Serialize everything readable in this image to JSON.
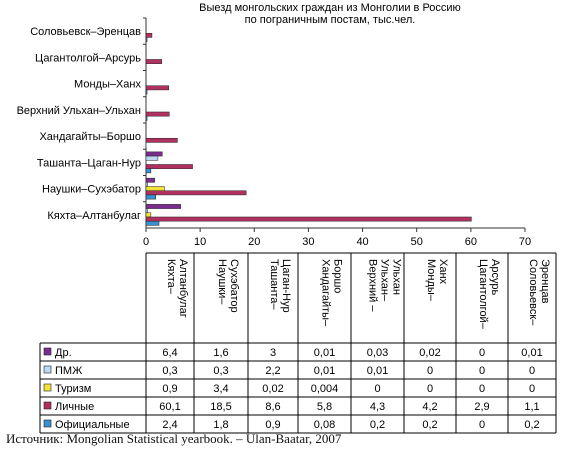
{
  "chart_data": {
    "type": "bar",
    "orientation": "horizontal",
    "title": "Выезд монгольских граждан из Монголии в Россию\nпо пограничным постам, тыс.чел.",
    "categories": [
      "Кяхта–Алтанбулаг",
      "Наушки–Сухэбатор",
      "Ташанта–Цаган-Нур",
      "Хандагайты–Боршо",
      "Верхний Ульхан–Ульхан",
      "Монды–Ханх",
      "Цагантолгой–Арсурь",
      "Соловьевск–Эренцав"
    ],
    "table_headers": [
      "Кяхта–\nАлтанбулаг",
      "Наушки–\nСухэбатор",
      "Ташанта–\nЦаган-Нур",
      "Хандагайты–\nБоршо",
      "Верхний –\nУльхан–\nУльхан",
      "Монды–\nХанх",
      "Цагантолгой–\nАрсурь",
      "Соловьевск–\nЭренцав"
    ],
    "series": [
      {
        "name": "Др.",
        "color": "#7b2d8e",
        "values": [
          6.4,
          1.6,
          3,
          0.01,
          0.03,
          0.02,
          0,
          0.01
        ],
        "labels": [
          "6,4",
          "1,6",
          "3",
          "0,01",
          "0,03",
          "0,02",
          "0",
          "0,01"
        ]
      },
      {
        "name": "ПМЖ",
        "color": "#bcd8f0",
        "values": [
          0.3,
          0.3,
          2.2,
          0.01,
          0.01,
          0,
          0,
          0
        ],
        "labels": [
          "0,3",
          "0,3",
          "2,2",
          "0,01",
          "0,01",
          "0",
          "0",
          "0"
        ]
      },
      {
        "name": "Туризм",
        "color": "#f2e23a",
        "values": [
          0.9,
          3.4,
          0.02,
          0.004,
          0,
          0,
          0,
          0
        ],
        "labels": [
          "0,9",
          "3,4",
          "0,02",
          "0,004",
          "0",
          "0",
          "0",
          "0"
        ]
      },
      {
        "name": "Личные",
        "color": "#b03060",
        "values": [
          60.1,
          18.5,
          8.6,
          5.8,
          4.3,
          4.2,
          2.9,
          1.1
        ],
        "labels": [
          "60,1",
          "18,5",
          "8,6",
          "5,8",
          "4,3",
          "4,2",
          "2,9",
          "1,1"
        ]
      },
      {
        "name": "Официальные",
        "color": "#3a8fd0",
        "values": [
          2.4,
          1.8,
          0.9,
          0.08,
          0.2,
          0.2,
          0,
          0.2
        ],
        "labels": [
          "2,4",
          "1,8",
          "0,9",
          "0,08",
          "0,2",
          "0,2",
          "0",
          "0,2"
        ]
      }
    ],
    "xlim": [
      0,
      70
    ],
    "xticks": [
      "0",
      "10",
      "20",
      "30",
      "40",
      "50",
      "60",
      "70"
    ],
    "grid": false,
    "legend": "table-bottom"
  },
  "source": "Источник: Mongolian Statistical yearbook. – Ulan-Baatar, 2007"
}
